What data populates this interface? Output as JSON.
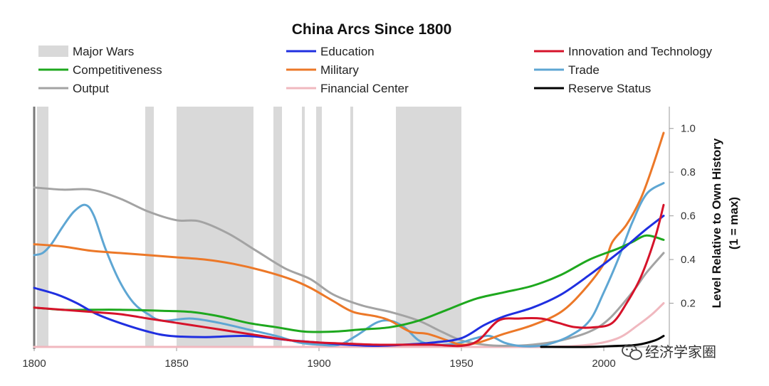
{
  "chart_data": {
    "type": "line",
    "title": "China Arcs Since 1800",
    "ylabel": [
      "Level Relative to Own History",
      "(1 = max)"
    ],
    "xlabel": "",
    "xlim": [
      1800,
      2023
    ],
    "ylim": [
      0,
      1.1
    ],
    "x_ticks": [
      "1800",
      "1850",
      "1900",
      "1950",
      "2000"
    ],
    "y_ticks": [
      "0.2",
      "0.4",
      "0.6",
      "0.8",
      "1.0"
    ],
    "y_tick_values": [
      0.2,
      0.4,
      0.6,
      0.8,
      1.0
    ],
    "x_tick_values": [
      1800,
      1850,
      1900,
      1950,
      2000
    ],
    "grid": false,
    "y_axis_side": "right",
    "legend_position": "top",
    "major_wars": {
      "name": "Major Wars",
      "color": "#d9d9d9",
      "periods": [
        [
          1801,
          1805
        ],
        [
          1839,
          1842
        ],
        [
          1850,
          1877
        ],
        [
          1884,
          1887
        ],
        [
          1894,
          1895
        ],
        [
          1899,
          1901
        ],
        [
          1911,
          1912
        ],
        [
          1927,
          1950
        ]
      ]
    },
    "series": [
      {
        "name": "Education",
        "color": "#1f2fe0",
        "points": [
          [
            1800,
            0.27
          ],
          [
            1808,
            0.24
          ],
          [
            1815,
            0.2
          ],
          [
            1822,
            0.15
          ],
          [
            1830,
            0.11
          ],
          [
            1840,
            0.07
          ],
          [
            1848,
            0.05
          ],
          [
            1860,
            0.045
          ],
          [
            1875,
            0.05
          ],
          [
            1890,
            0.03
          ],
          [
            1900,
            0.02
          ],
          [
            1910,
            0.01
          ],
          [
            1920,
            0.005
          ],
          [
            1930,
            0.01
          ],
          [
            1940,
            0.02
          ],
          [
            1950,
            0.04
          ],
          [
            1958,
            0.1
          ],
          [
            1965,
            0.14
          ],
          [
            1975,
            0.18
          ],
          [
            1985,
            0.24
          ],
          [
            1995,
            0.33
          ],
          [
            2005,
            0.43
          ],
          [
            2015,
            0.54
          ],
          [
            2021,
            0.6
          ]
        ]
      },
      {
        "name": "Innovation and Technology",
        "color": "#d6132a",
        "points": [
          [
            1800,
            0.18
          ],
          [
            1810,
            0.17
          ],
          [
            1820,
            0.16
          ],
          [
            1830,
            0.15
          ],
          [
            1840,
            0.13
          ],
          [
            1850,
            0.11
          ],
          [
            1860,
            0.09
          ],
          [
            1870,
            0.07
          ],
          [
            1880,
            0.05
          ],
          [
            1890,
            0.03
          ],
          [
            1900,
            0.02
          ],
          [
            1910,
            0.015
          ],
          [
            1920,
            0.01
          ],
          [
            1930,
            0.01
          ],
          [
            1940,
            0.01
          ],
          [
            1950,
            0.005
          ],
          [
            1956,
            0.03
          ],
          [
            1963,
            0.12
          ],
          [
            1970,
            0.13
          ],
          [
            1978,
            0.13
          ],
          [
            1984,
            0.11
          ],
          [
            1990,
            0.09
          ],
          [
            1997,
            0.09
          ],
          [
            2003,
            0.11
          ],
          [
            2008,
            0.2
          ],
          [
            2013,
            0.32
          ],
          [
            2018,
            0.5
          ],
          [
            2021,
            0.65
          ]
        ]
      },
      {
        "name": "Competitiveness",
        "color": "#1ea81e",
        "points": [
          [
            1800,
            0.18
          ],
          [
            1810,
            0.17
          ],
          [
            1820,
            0.17
          ],
          [
            1830,
            0.17
          ],
          [
            1845,
            0.165
          ],
          [
            1855,
            0.16
          ],
          [
            1865,
            0.14
          ],
          [
            1875,
            0.11
          ],
          [
            1885,
            0.09
          ],
          [
            1895,
            0.07
          ],
          [
            1905,
            0.07
          ],
          [
            1915,
            0.08
          ],
          [
            1925,
            0.09
          ],
          [
            1935,
            0.12
          ],
          [
            1945,
            0.17
          ],
          [
            1955,
            0.22
          ],
          [
            1965,
            0.25
          ],
          [
            1975,
            0.28
          ],
          [
            1985,
            0.33
          ],
          [
            1995,
            0.4
          ],
          [
            2005,
            0.45
          ],
          [
            2010,
            0.48
          ],
          [
            2015,
            0.51
          ],
          [
            2021,
            0.49
          ]
        ]
      },
      {
        "name": "Military",
        "color": "#ec7828",
        "points": [
          [
            1800,
            0.47
          ],
          [
            1810,
            0.46
          ],
          [
            1820,
            0.44
          ],
          [
            1830,
            0.43
          ],
          [
            1840,
            0.42
          ],
          [
            1850,
            0.41
          ],
          [
            1860,
            0.4
          ],
          [
            1870,
            0.38
          ],
          [
            1880,
            0.35
          ],
          [
            1890,
            0.31
          ],
          [
            1897,
            0.27
          ],
          [
            1905,
            0.21
          ],
          [
            1912,
            0.16
          ],
          [
            1920,
            0.14
          ],
          [
            1925,
            0.12
          ],
          [
            1932,
            0.07
          ],
          [
            1938,
            0.06
          ],
          [
            1945,
            0.03
          ],
          [
            1950,
            0.01
          ],
          [
            1956,
            0.02
          ],
          [
            1965,
            0.06
          ],
          [
            1975,
            0.1
          ],
          [
            1985,
            0.16
          ],
          [
            1993,
            0.26
          ],
          [
            2000,
            0.38
          ],
          [
            2003,
            0.48
          ],
          [
            2008,
            0.56
          ],
          [
            2013,
            0.68
          ],
          [
            2017,
            0.82
          ],
          [
            2021,
            0.98
          ]
        ]
      },
      {
        "name": "Trade",
        "color": "#5ea6d3",
        "points": [
          [
            1800,
            0.42
          ],
          [
            1803,
            0.43
          ],
          [
            1806,
            0.47
          ],
          [
            1810,
            0.55
          ],
          [
            1814,
            0.62
          ],
          [
            1818,
            0.65
          ],
          [
            1821,
            0.6
          ],
          [
            1825,
            0.45
          ],
          [
            1830,
            0.3
          ],
          [
            1835,
            0.2
          ],
          [
            1840,
            0.15
          ],
          [
            1845,
            0.12
          ],
          [
            1855,
            0.13
          ],
          [
            1865,
            0.11
          ],
          [
            1875,
            0.08
          ],
          [
            1885,
            0.05
          ],
          [
            1893,
            0.02
          ],
          [
            1900,
            0.01
          ],
          [
            1907,
            0.01
          ],
          [
            1913,
            0.05
          ],
          [
            1920,
            0.11
          ],
          [
            1925,
            0.12
          ],
          [
            1930,
            0.09
          ],
          [
            1935,
            0.03
          ],
          [
            1940,
            0.01
          ],
          [
            1945,
            0.01
          ],
          [
            1950,
            0.02
          ],
          [
            1955,
            0.04
          ],
          [
            1960,
            0.05
          ],
          [
            1965,
            0.02
          ],
          [
            1970,
            0.005
          ],
          [
            1975,
            0.003
          ],
          [
            1980,
            0.01
          ],
          [
            1988,
            0.05
          ],
          [
            1995,
            0.12
          ],
          [
            2000,
            0.25
          ],
          [
            2005,
            0.4
          ],
          [
            2010,
            0.57
          ],
          [
            2015,
            0.7
          ],
          [
            2021,
            0.75
          ]
        ]
      },
      {
        "name": "Output",
        "color": "#a3a3a3",
        "points": [
          [
            1800,
            0.73
          ],
          [
            1810,
            0.72
          ],
          [
            1820,
            0.72
          ],
          [
            1830,
            0.68
          ],
          [
            1840,
            0.62
          ],
          [
            1850,
            0.58
          ],
          [
            1858,
            0.575
          ],
          [
            1868,
            0.52
          ],
          [
            1878,
            0.44
          ],
          [
            1888,
            0.36
          ],
          [
            1897,
            0.31
          ],
          [
            1905,
            0.24
          ],
          [
            1915,
            0.19
          ],
          [
            1925,
            0.16
          ],
          [
            1935,
            0.12
          ],
          [
            1943,
            0.07
          ],
          [
            1950,
            0.03
          ],
          [
            1958,
            0.01
          ],
          [
            1965,
            0.005
          ],
          [
            1975,
            0.01
          ],
          [
            1985,
            0.03
          ],
          [
            1995,
            0.07
          ],
          [
            2002,
            0.13
          ],
          [
            2010,
            0.25
          ],
          [
            2015,
            0.34
          ],
          [
            2021,
            0.43
          ]
        ]
      },
      {
        "name": "Financial Center",
        "color": "#f0b8bf",
        "points": [
          [
            1800,
            0.0
          ],
          [
            1950,
            0.0
          ],
          [
            1980,
            0.0
          ],
          [
            1995,
            0.01
          ],
          [
            2005,
            0.04
          ],
          [
            2012,
            0.1
          ],
          [
            2017,
            0.15
          ],
          [
            2021,
            0.2
          ]
        ]
      },
      {
        "name": "Reserve Status",
        "color": "#000000",
        "points": [
          [
            1978,
            0.0
          ],
          [
            1995,
            0.0
          ],
          [
            2005,
            0.005
          ],
          [
            2012,
            0.01
          ],
          [
            2018,
            0.03
          ],
          [
            2021,
            0.05
          ]
        ]
      }
    ]
  },
  "watermark": "经济学家圈",
  "watermark_icon": "wechat-icon"
}
